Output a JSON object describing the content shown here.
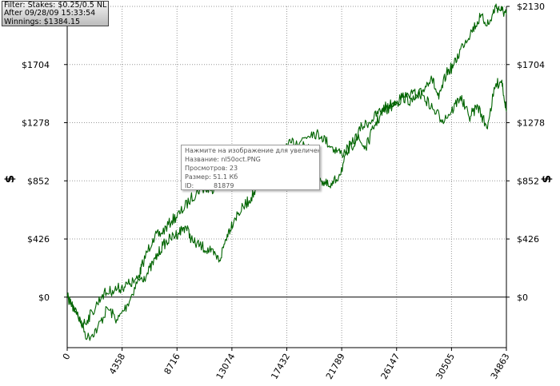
{
  "info_box": {
    "filter": "Filter: Stakes: $0.25/0.5 NL",
    "after": "After 09/28/09 15:33:54",
    "winnings": "Winnings: $1384.15"
  },
  "tooltip": {
    "line1": "Нажмите на изображение для увеличения",
    "line2": "Название: nl50oct.PNG",
    "line3": "Просмотров: 23",
    "line4": "Размер:  51.1 Кб",
    "id_label": "ID:",
    "id_value": "81879"
  },
  "chart_data": {
    "type": "line",
    "title": "",
    "xlabel": "",
    "ylabel": "$",
    "xlim": [
      0,
      34863
    ],
    "ylim": [
      -370,
      2130
    ],
    "x_ticks": [
      0,
      4358,
      8716,
      13074,
      17432,
      21789,
      26147,
      30505,
      34863
    ],
    "y_ticks": [
      0,
      426,
      852,
      1278,
      1704,
      2130
    ],
    "y_tick_labels": [
      "$0",
      "$426",
      "$852",
      "$1278",
      "$1704",
      "$2130"
    ],
    "grid": true,
    "colors": {
      "line": "#006400",
      "grid": "#999999",
      "zero_line": "#000000"
    },
    "series": [
      {
        "x": [
          0,
          800,
          1600,
          2400,
          3200,
          4000,
          4800,
          5600,
          6000,
          6800,
          7500,
          8300,
          9000,
          9800,
          10600,
          11400,
          12200,
          13000,
          13800,
          14600,
          15400,
          16200,
          17000,
          17800,
          18600,
          19400,
          20200,
          21000,
          21800,
          22600,
          23400,
          24200,
          25000,
          25800,
          26600,
          27400,
          28200,
          28900,
          29500,
          30100,
          30700,
          31400,
          32100,
          32800,
          33500,
          34000,
          34500,
          34863
        ],
        "values": [
          0,
          -120,
          -300,
          -230,
          -80,
          -170,
          -50,
          120,
          250,
          430,
          470,
          560,
          620,
          720,
          800,
          780,
          880,
          950,
          1020,
          1060,
          1030,
          980,
          1050,
          1130,
          1150,
          1210,
          1180,
          1100,
          1050,
          1120,
          1250,
          1300,
          1380,
          1420,
          1470,
          1430,
          1510,
          1620,
          1450,
          1640,
          1700,
          1850,
          1950,
          2050,
          2000,
          2130,
          2100,
          2070
        ]
      },
      {
        "x": [
          0,
          600,
          1300,
          2000,
          2800,
          3600,
          4300,
          5000,
          5700,
          6300,
          7000,
          7600,
          8200,
          8800,
          9400,
          10000,
          10700,
          11400,
          12100,
          12700,
          13300,
          14000,
          14600,
          15300,
          16000,
          16700,
          17400,
          18100,
          18800,
          19500,
          20200,
          20900,
          21600,
          22300,
          23000,
          23700,
          24400,
          25100,
          25800,
          26600,
          27400,
          28200,
          29000,
          29800,
          30500,
          31200,
          31900,
          32600,
          33300,
          34000,
          34500,
          34863
        ],
        "values": [
          0,
          -100,
          -200,
          -110,
          20,
          50,
          70,
          100,
          130,
          160,
          280,
          380,
          430,
          470,
          520,
          400,
          370,
          330,
          270,
          460,
          580,
          660,
          730,
          820,
          880,
          940,
          920,
          1000,
          1120,
          1060,
          850,
          800,
          900,
          1060,
          1170,
          1090,
          1260,
          1360,
          1400,
          1460,
          1490,
          1480,
          1380,
          1300,
          1360,
          1470,
          1320,
          1400,
          1240,
          1550,
          1590,
          1360
        ]
      }
    ]
  }
}
